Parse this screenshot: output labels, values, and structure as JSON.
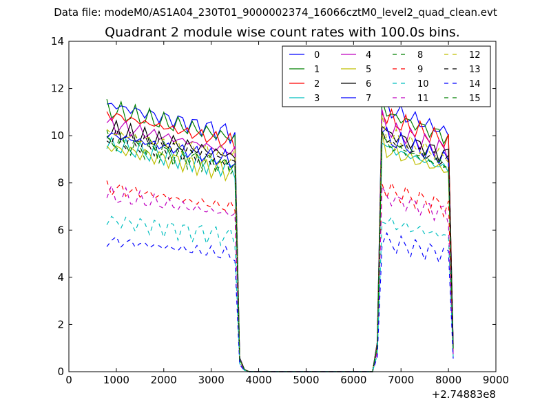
{
  "suptitle": "Data file: modeM0/AS1A04_230T01_9000002374_16066cztM0_level2_quad_clean.evt",
  "chart_data": {
    "type": "line",
    "title": "Quadrant 2 module wise count rates with 100.0s bins.",
    "xlabel": "",
    "ylabel": "",
    "xlim": [
      0,
      9000
    ],
    "ylim": [
      0,
      14
    ],
    "xticks": [
      0,
      1000,
      2000,
      3000,
      4000,
      5000,
      6000,
      7000,
      8000,
      9000
    ],
    "yticks": [
      0,
      2,
      4,
      6,
      8,
      10,
      12,
      14
    ],
    "x_offset_label": "+2.74883e8",
    "legend_position": "top-right",
    "series": [
      {
        "name": "0",
        "color": "#0000ff",
        "style": "solid",
        "base": 10.6
      },
      {
        "name": "1",
        "color": "#008000",
        "style": "solid",
        "base": 10.4
      },
      {
        "name": "2",
        "color": "#ff0000",
        "style": "solid",
        "base": 10.2
      },
      {
        "name": "3",
        "color": "#00bfbf",
        "style": "solid",
        "base": 9.0
      },
      {
        "name": "4",
        "color": "#bf00bf",
        "style": "solid",
        "base": 9.8
      },
      {
        "name": "5",
        "color": "#bfbf00",
        "style": "solid",
        "base": 8.9
      },
      {
        "name": "6",
        "color": "#000000",
        "style": "solid",
        "base": 9.6
      },
      {
        "name": "7",
        "color": "#0000ff",
        "style": "solid",
        "base": 9.4
      },
      {
        "name": "8",
        "color": "#008000",
        "style": "dashed",
        "base": 9.2
      },
      {
        "name": "9",
        "color": "#ff0000",
        "style": "dashed",
        "base": 7.3
      },
      {
        "name": "10",
        "color": "#00bfbf",
        "style": "dashed",
        "base": 6.0
      },
      {
        "name": "11",
        "color": "#bf00bf",
        "style": "dashed",
        "base": 7.0
      },
      {
        "name": "12",
        "color": "#bfbf00",
        "style": "dashed",
        "base": 9.5
      },
      {
        "name": "13",
        "color": "#000000",
        "style": "dashed",
        "base": 9.3
      },
      {
        "name": "14",
        "color": "#0000ff",
        "style": "dashed",
        "base": 5.2
      },
      {
        "name": "15",
        "color": "#008000",
        "style": "dashed",
        "base": 9.1
      }
    ],
    "x": [
      800,
      900,
      1000,
      1100,
      1200,
      1300,
      1400,
      1500,
      1600,
      1700,
      1800,
      1900,
      2000,
      2100,
      2200,
      2300,
      2400,
      2500,
      2600,
      2700,
      2800,
      2900,
      3000,
      3100,
      3200,
      3300,
      3400,
      3500,
      3600,
      3700,
      3800,
      6400,
      6500,
      6600,
      6700,
      6800,
      6900,
      7000,
      7100,
      7200,
      7300,
      7400,
      7500,
      7600,
      7700,
      7800,
      7900,
      8000,
      8100
    ]
  }
}
